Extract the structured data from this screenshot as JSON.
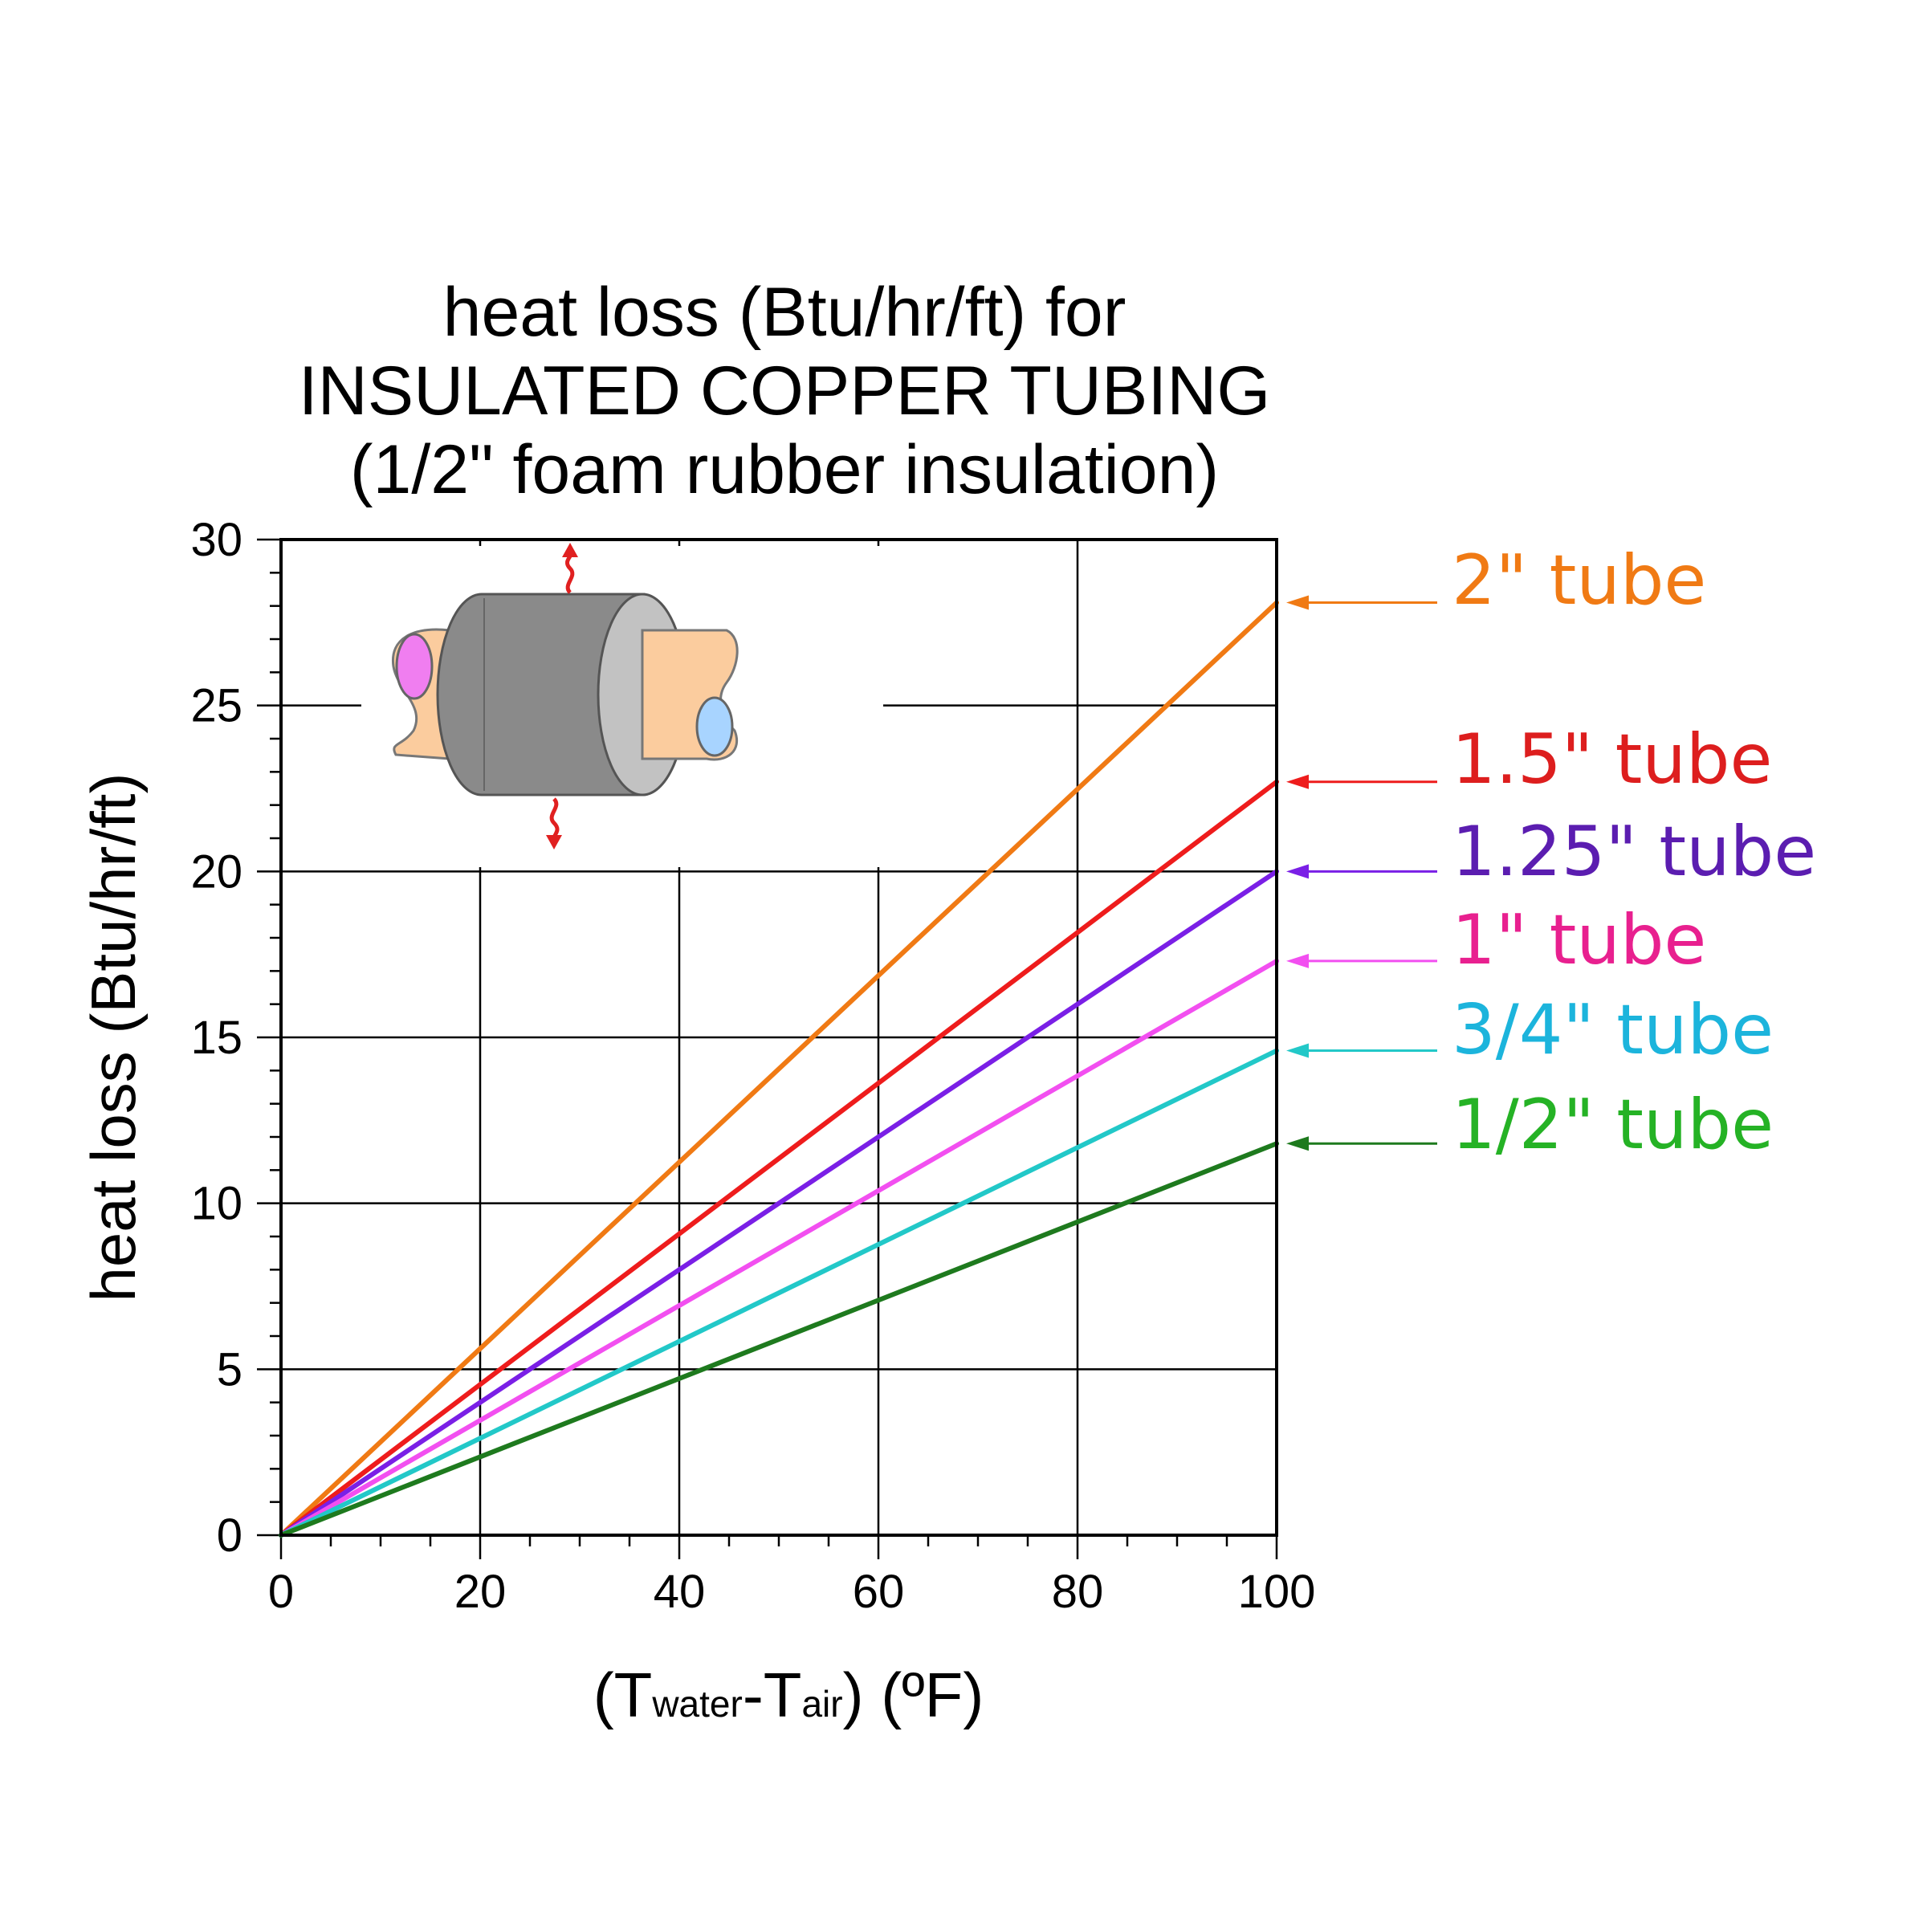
{
  "chart_data": {
    "type": "line",
    "title": [
      "heat loss (Btu/hr/ft) for",
      "INSULATED COPPER TUBING",
      "(1/2\" foam rubber insulation)"
    ],
    "ylabel": "heat loss (Btu/hr/ft)",
    "xlabel": {
      "open": "(T",
      "sub1": "water",
      "mid": "-T",
      "sub2": "air",
      "close": ") (ºF)"
    },
    "xlim": [
      0,
      100
    ],
    "ylim": [
      0,
      30
    ],
    "x_ticks": [
      0,
      20,
      40,
      60,
      80,
      100
    ],
    "y_ticks": [
      0,
      5,
      10,
      15,
      20,
      25,
      30
    ],
    "grid": true,
    "inset": "insulated copper tube illustration with heat-escape arrows (top-left of plot)",
    "series": [
      {
        "name": "2\" tube",
        "x": [
          0,
          100
        ],
        "y": [
          0,
          28.1
        ],
        "color": "#f07a14",
        "label_color": "#f07a14"
      },
      {
        "name": "1.5\" tube",
        "x": [
          0,
          100
        ],
        "y": [
          0,
          22.7
        ],
        "color": "#ee1c1c",
        "label_color": "#dd1e1e"
      },
      {
        "name": "1.25\" tube",
        "x": [
          0,
          100
        ],
        "y": [
          0,
          20.0
        ],
        "color": "#7a1fe6",
        "label_color": "#5b1db0"
      },
      {
        "name": "1\" tube",
        "x": [
          0,
          100
        ],
        "y": [
          0,
          17.3
        ],
        "color": "#f24ff0",
        "label_color": "#e8208f"
      },
      {
        "name": "3/4\" tube",
        "x": [
          0,
          100
        ],
        "y": [
          0,
          14.6
        ],
        "color": "#22c8c8",
        "label_color": "#1cb4dc"
      },
      {
        "name": "1/2\" tube",
        "x": [
          0,
          100
        ],
        "y": [
          0,
          11.8
        ],
        "color": "#1e7a1e",
        "label_color": "#25b225"
      }
    ]
  }
}
